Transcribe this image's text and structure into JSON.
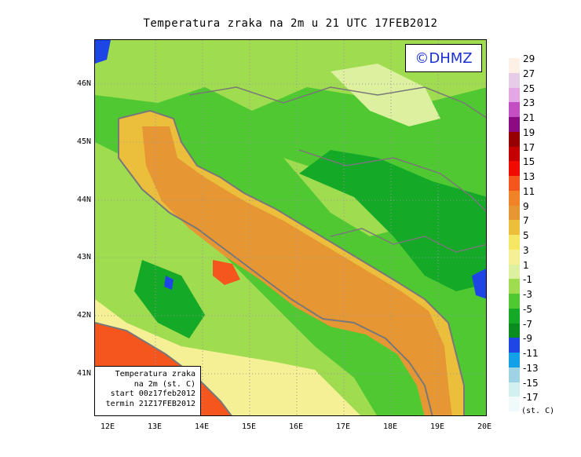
{
  "title": "Temperatura zraka na 2m u 21 UTC 17FEB2012",
  "logo": "©DHMZ",
  "info_box": {
    "line1": "Temperatura zraka",
    "line2": "na 2m (st. C)",
    "line3": "start 00z17feb2012",
    "line4": "termin 21Z17FEB2012"
  },
  "lat_labels": [
    "46N",
    "45N",
    "44N",
    "43N",
    "42N",
    "41N"
  ],
  "lon_labels": [
    "12E",
    "13E",
    "14E",
    "15E",
    "16E",
    "17E",
    "18E",
    "19E",
    "20E"
  ],
  "legend": {
    "unit": "(st. C)",
    "items": [
      {
        "label": "29",
        "color": "#fdf0e4"
      },
      {
        "label": "27",
        "color": "#e6cce6"
      },
      {
        "label": "25",
        "color": "#e4a6e4"
      },
      {
        "label": "23",
        "color": "#c44ec4"
      },
      {
        "label": "21",
        "color": "#8c0a82"
      },
      {
        "label": "19",
        "color": "#960000"
      },
      {
        "label": "17",
        "color": "#c40000"
      },
      {
        "label": "15",
        "color": "#f00a00"
      },
      {
        "label": "13",
        "color": "#f5561e"
      },
      {
        "label": "11",
        "color": "#f08228"
      },
      {
        "label": "9",
        "color": "#e69632"
      },
      {
        "label": "7",
        "color": "#ebbe3c"
      },
      {
        "label": "5",
        "color": "#f5e664"
      },
      {
        "label": "3",
        "color": "#f5f096"
      },
      {
        "label": "1",
        "color": "#dcf0a0"
      },
      {
        "label": "-1",
        "color": "#a0dc50"
      },
      {
        "label": "-3",
        "color": "#50c832"
      },
      {
        "label": "-5",
        "color": "#14aa28"
      },
      {
        "label": "-7",
        "color": "#0a8c1e"
      },
      {
        "label": "-9",
        "color": "#1e46e6"
      },
      {
        "label": "-11",
        "color": "#14a0e6"
      },
      {
        "label": "-13",
        "color": "#a0d2e6"
      },
      {
        "label": "-15",
        "color": "#d2f0f0"
      },
      {
        "label": "-17",
        "color": "#f0fafa"
      }
    ]
  }
}
